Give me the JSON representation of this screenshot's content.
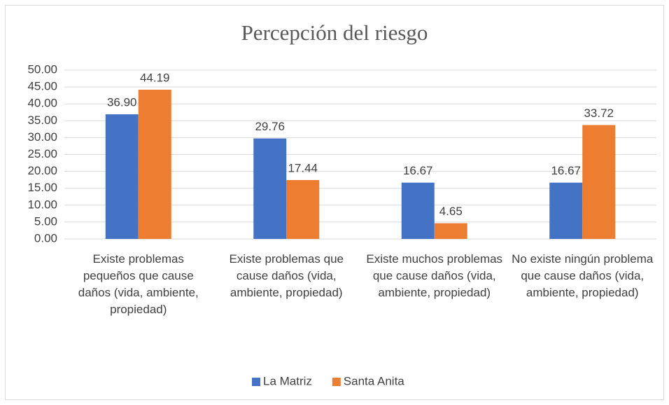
{
  "chart_data": {
    "type": "bar",
    "title": "Percepción del riesgo",
    "categories": [
      "Existe problemas pequeños que cause daños (vida, ambiente, propiedad)",
      "Existe problemas que cause daños (vida, ambiente, propiedad)",
      "Existe muchos problemas que cause daños (vida, ambiente, propiedad)",
      "No existe ningún problema que cause daños (vida, ambiente, propiedad)"
    ],
    "series": [
      {
        "name": "La Matriz",
        "color": "#4472c4",
        "values": [
          36.9,
          29.76,
          16.67,
          16.67
        ],
        "value_labels": [
          "36.90",
          "29.76",
          "16.67",
          "16.67"
        ]
      },
      {
        "name": "Santa Anita",
        "color": "#ed7d31",
        "values": [
          44.19,
          17.44,
          4.65,
          33.72
        ],
        "value_labels": [
          "44.19",
          "17.44",
          "4.65",
          "33.72"
        ]
      }
    ],
    "ylim": [
      0,
      50
    ],
    "yticks": [
      {
        "value": 0,
        "label": "0.00"
      },
      {
        "value": 5,
        "label": "5.00"
      },
      {
        "value": 10,
        "label": "10.00"
      },
      {
        "value": 15,
        "label": "15.00"
      },
      {
        "value": 20,
        "label": "20.00"
      },
      {
        "value": 25,
        "label": "25.00"
      },
      {
        "value": 30,
        "label": "30.00"
      },
      {
        "value": 35,
        "label": "35.00"
      },
      {
        "value": 40,
        "label": "40.00"
      },
      {
        "value": 45,
        "label": "45.00"
      },
      {
        "value": 50,
        "label": "50.00"
      }
    ],
    "grid": true,
    "legend": "bottom"
  }
}
